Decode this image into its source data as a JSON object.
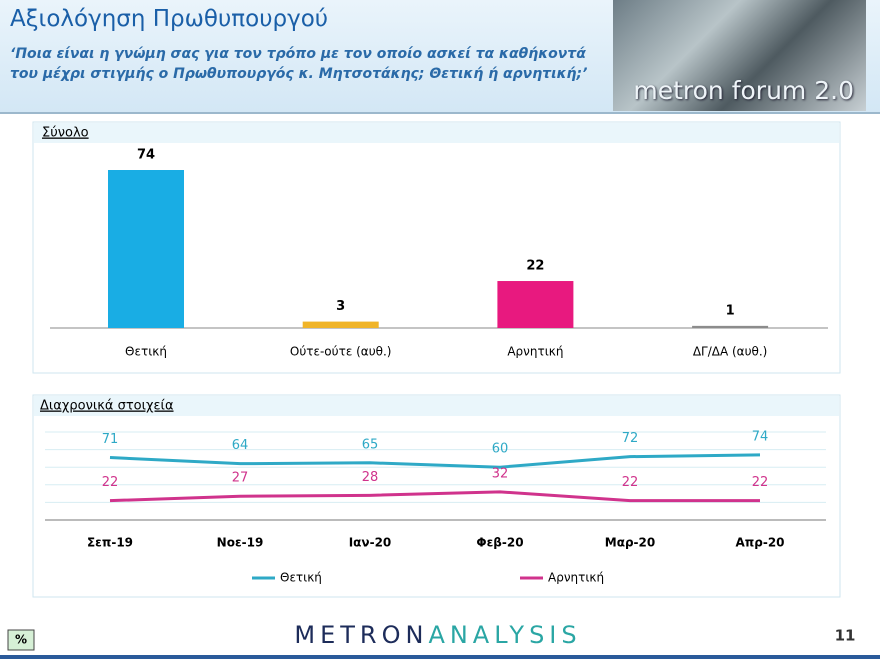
{
  "header": {
    "title": "Αξιολόγηση Πρωθυπουργού",
    "subtitle": "‘Ποια είναι η γνώμη σας για τον τρόπο με τον οποίο ασκεί τα καθήκοντά του μέχρι στιγμής ο Πρωθυπουργός κ. Μητσοτάκης; Θετική ή αρνητική;’",
    "logo": "metron forum 2.0"
  },
  "chart_data": [
    {
      "type": "bar",
      "title": "Σύνολο",
      "categories": [
        "Θετική",
        "Ούτε-ούτε (αυθ.)",
        "Αρνητική",
        "ΔΓ/ΔΑ (αυθ.)"
      ],
      "values": [
        74,
        3,
        22,
        1
      ],
      "colors": [
        "#19ade4",
        "#f0b428",
        "#e8197f",
        "#8c8c8c"
      ]
    },
    {
      "type": "line",
      "title": "Διαχρονικά στοιχεία",
      "categories": [
        "Σεπ-19",
        "Νοε-19",
        "Ιαν-20",
        "Φεβ-20",
        "Μαρ-20",
        "Απρ-20"
      ],
      "series": [
        {
          "name": "Θετική",
          "color": "#2ea9c6",
          "values": [
            71,
            64,
            65,
            60,
            72,
            74
          ]
        },
        {
          "name": "Αρνητική",
          "color": "#d0338c",
          "values": [
            22,
            27,
            28,
            32,
            22,
            22
          ]
        }
      ],
      "ylim": [
        0,
        100
      ],
      "yticks": [
        0,
        20,
        40,
        60,
        80,
        100
      ],
      "grid": true,
      "legend": "bottom"
    }
  ],
  "footer": {
    "unit": "%",
    "brand_a": "METRON",
    "brand_b": "ANALYSIS",
    "page": "11"
  }
}
